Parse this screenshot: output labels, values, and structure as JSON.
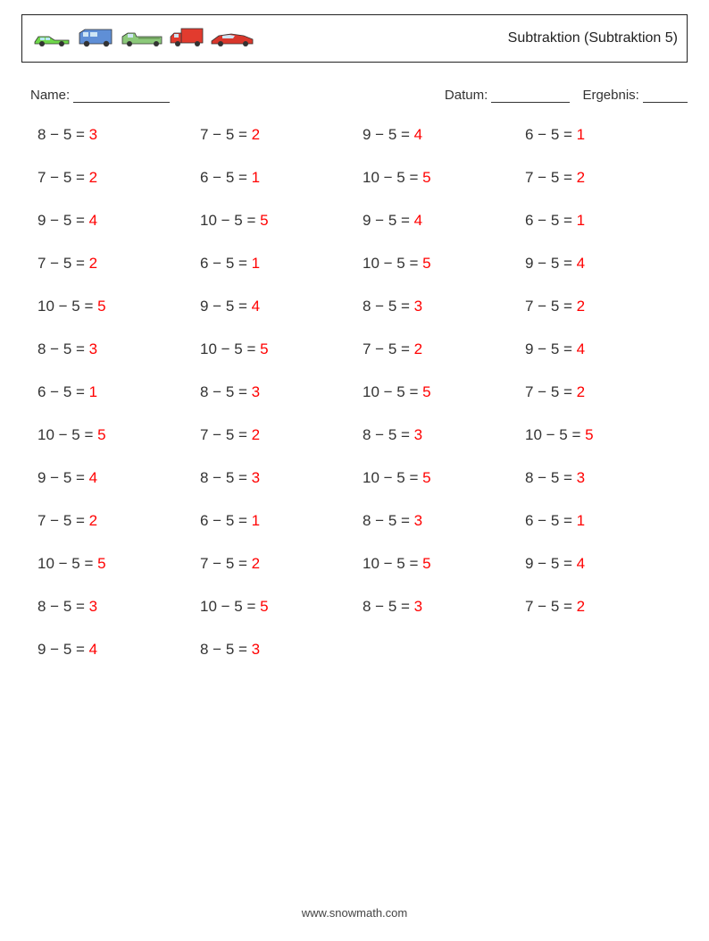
{
  "header": {
    "title": "Subtraktion (Subtraktion 5)"
  },
  "meta": {
    "name_label": "Name:",
    "name_underline_width": 108,
    "date_label": "Datum:",
    "date_underline_width": 88,
    "result_label": "Ergebnis:",
    "result_underline_width": 50
  },
  "problems_grid": {
    "columns": 4,
    "font_size": 17,
    "question_color": "#333333",
    "answer_color": "#ff0000",
    "problems": [
      {
        "a": 8,
        "b": 5,
        "ans": 3
      },
      {
        "a": 7,
        "b": 5,
        "ans": 2
      },
      {
        "a": 9,
        "b": 5,
        "ans": 4
      },
      {
        "a": 6,
        "b": 5,
        "ans": 1
      },
      {
        "a": 7,
        "b": 5,
        "ans": 2
      },
      {
        "a": 6,
        "b": 5,
        "ans": 1
      },
      {
        "a": 10,
        "b": 5,
        "ans": 5
      },
      {
        "a": 7,
        "b": 5,
        "ans": 2
      },
      {
        "a": 9,
        "b": 5,
        "ans": 4
      },
      {
        "a": 10,
        "b": 5,
        "ans": 5
      },
      {
        "a": 9,
        "b": 5,
        "ans": 4
      },
      {
        "a": 6,
        "b": 5,
        "ans": 1
      },
      {
        "a": 7,
        "b": 5,
        "ans": 2
      },
      {
        "a": 6,
        "b": 5,
        "ans": 1
      },
      {
        "a": 10,
        "b": 5,
        "ans": 5
      },
      {
        "a": 9,
        "b": 5,
        "ans": 4
      },
      {
        "a": 10,
        "b": 5,
        "ans": 5
      },
      {
        "a": 9,
        "b": 5,
        "ans": 4
      },
      {
        "a": 8,
        "b": 5,
        "ans": 3
      },
      {
        "a": 7,
        "b": 5,
        "ans": 2
      },
      {
        "a": 8,
        "b": 5,
        "ans": 3
      },
      {
        "a": 10,
        "b": 5,
        "ans": 5
      },
      {
        "a": 7,
        "b": 5,
        "ans": 2
      },
      {
        "a": 9,
        "b": 5,
        "ans": 4
      },
      {
        "a": 6,
        "b": 5,
        "ans": 1
      },
      {
        "a": 8,
        "b": 5,
        "ans": 3
      },
      {
        "a": 10,
        "b": 5,
        "ans": 5
      },
      {
        "a": 7,
        "b": 5,
        "ans": 2
      },
      {
        "a": 10,
        "b": 5,
        "ans": 5
      },
      {
        "a": 7,
        "b": 5,
        "ans": 2
      },
      {
        "a": 8,
        "b": 5,
        "ans": 3
      },
      {
        "a": 10,
        "b": 5,
        "ans": 5
      },
      {
        "a": 9,
        "b": 5,
        "ans": 4
      },
      {
        "a": 8,
        "b": 5,
        "ans": 3
      },
      {
        "a": 10,
        "b": 5,
        "ans": 5
      },
      {
        "a": 8,
        "b": 5,
        "ans": 3
      },
      {
        "a": 7,
        "b": 5,
        "ans": 2
      },
      {
        "a": 6,
        "b": 5,
        "ans": 1
      },
      {
        "a": 8,
        "b": 5,
        "ans": 3
      },
      {
        "a": 6,
        "b": 5,
        "ans": 1
      },
      {
        "a": 10,
        "b": 5,
        "ans": 5
      },
      {
        "a": 7,
        "b": 5,
        "ans": 2
      },
      {
        "a": 10,
        "b": 5,
        "ans": 5
      },
      {
        "a": 9,
        "b": 5,
        "ans": 4
      },
      {
        "a": 8,
        "b": 5,
        "ans": 3
      },
      {
        "a": 10,
        "b": 5,
        "ans": 5
      },
      {
        "a": 8,
        "b": 5,
        "ans": 3
      },
      {
        "a": 7,
        "b": 5,
        "ans": 2
      },
      {
        "a": 9,
        "b": 5,
        "ans": 4
      },
      {
        "a": 8,
        "b": 5,
        "ans": 3
      }
    ]
  },
  "footer": {
    "text": "www.snowmath.com"
  },
  "icons": {
    "names": [
      "car-green",
      "van-blue",
      "pickup-green",
      "truck-red",
      "sportscar-red"
    ]
  },
  "colors": {
    "background": "#ffffff",
    "border": "#222222",
    "text": "#333333"
  }
}
